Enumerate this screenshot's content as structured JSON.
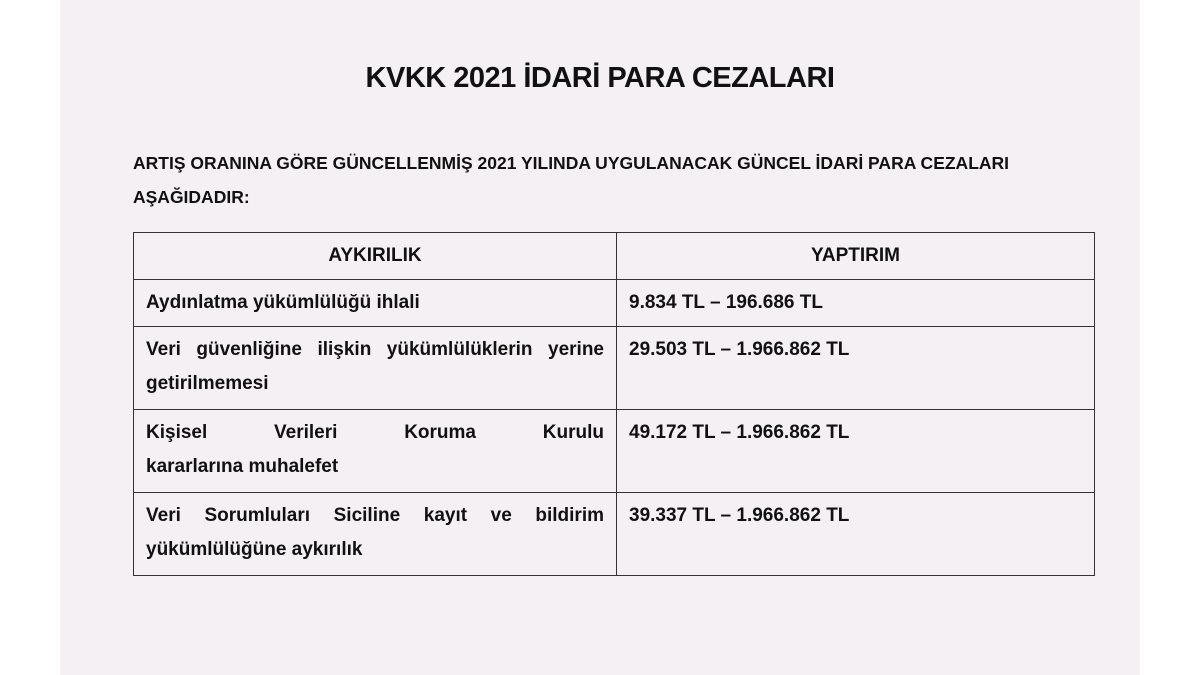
{
  "panel_color": "#f5f0f3",
  "title": "KVKK 2021 İDARİ PARA CEZALARI",
  "intro": "ARTIŞ ORANINA GÖRE GÜNCELLENMİŞ 2021 YILINDA UYGULANACAK GÜNCEL İDARİ PARA CEZALARI AŞAĞIDADIR:",
  "table": {
    "headers": [
      "AYKIRILIK",
      "YAPTIRIM"
    ],
    "rows": [
      {
        "violation": "Aydınlatma yükümlülüğü ihlali",
        "penalty": "9.834 TL – 196.686  TL"
      },
      {
        "violation": "Veri güvenliğine ilişkin yükümlülüklerin yerine getirilmemesi",
        "penalty": "29.503 TL – 1.966.862  TL"
      },
      {
        "violation_line1": "Kişisel Verileri Koruma Kurulu",
        "violation_line2": "kararlarına muhalefet",
        "penalty": "49.172 TL – 1.966.862  TL"
      },
      {
        "violation": "Veri Sorumluları Siciline kayıt ve bildirim yükümlülüğüne aykırılık",
        "penalty": "39.337 TL – 1.966.862  TL"
      }
    ]
  }
}
